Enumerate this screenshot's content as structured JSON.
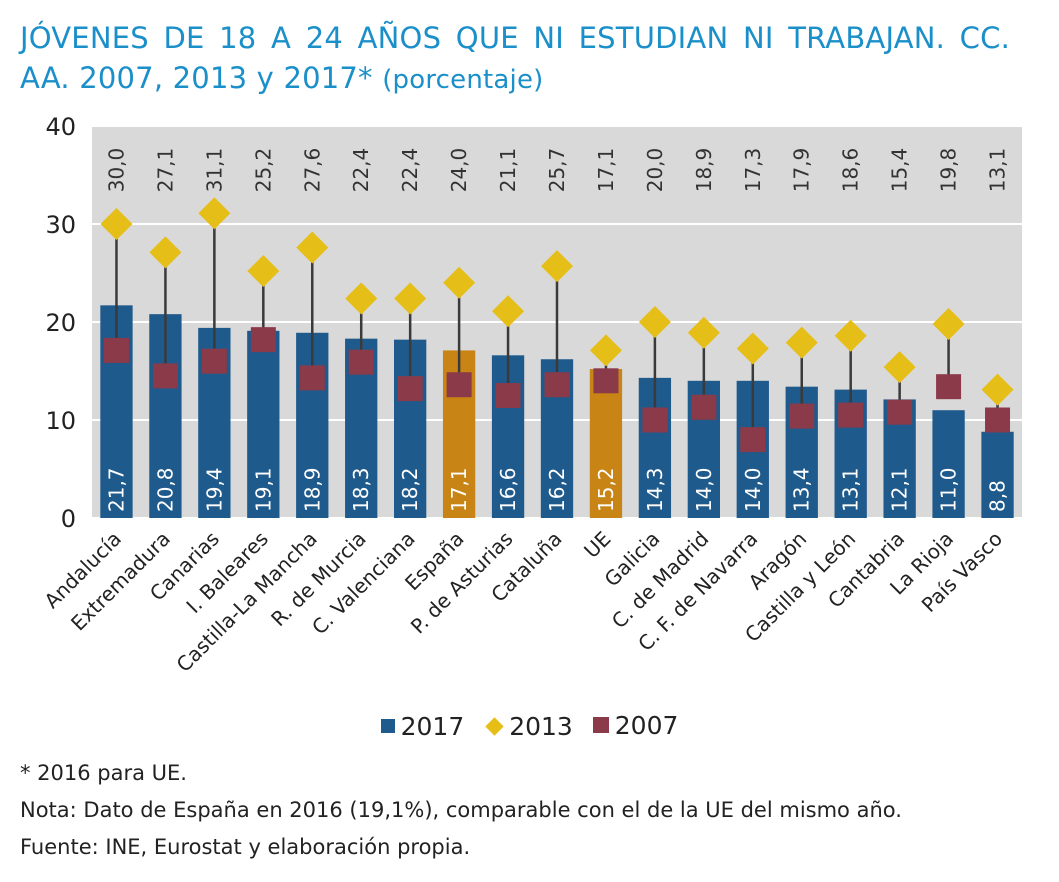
{
  "title": {
    "main": "JÓVENES DE 18 A 24 AÑOS QUE NI ESTUDIAN NI TRABAJAN. CC. AA. 2007, 2013 y 2017*",
    "unit": "(porcentaje)"
  },
  "legend": {
    "s2017": "2017",
    "s2013": "2013",
    "s2007": "2007"
  },
  "notes": {
    "asterisk": "* 2016 para UE.",
    "nota": "Nota: Dato de España en 2016 (19,1%), comparable con el de la UE del mismo año.",
    "fuente": "Fuente: INE, Eurostat  y elaboración propia."
  },
  "colors": {
    "bar": "#1f5a8c",
    "bar_highlight": "#c88414",
    "diamond_2013": "#e6be18",
    "square_2007": "#8b3a4a",
    "plot_background": "#d9d9d9",
    "title": "#1a8fc9"
  },
  "chart_data": {
    "type": "bar",
    "title": "JÓVENES DE 18 A 24 AÑOS QUE NI ESTUDIAN NI TRABAJAN. CC. AA. 2007, 2013 y 2017*",
    "xlabel": "",
    "ylabel": "",
    "ylim": [
      0,
      40
    ],
    "yticks": [
      "0",
      "10",
      "20",
      "30",
      "40"
    ],
    "grid": true,
    "legend_position": "bottom",
    "categories": [
      "Andalucía",
      "Extremadura",
      "Canarias",
      "I. Baleares",
      "Castilla-La Mancha",
      "R. de Murcia",
      "C. Valenciana",
      "España",
      "P. de Asturias",
      "Cataluña",
      "UE",
      "Galicia",
      "C. de Madrid",
      "C. F. de Navarra",
      "Aragón",
      "Castilla y León",
      "Cantabria",
      "La Rioja",
      "País Vasco"
    ],
    "highlight_categories": [
      "España",
      "UE"
    ],
    "series": [
      {
        "name": "2017",
        "kind": "bar",
        "values": [
          21.7,
          20.8,
          19.4,
          19.1,
          18.9,
          18.3,
          18.2,
          17.1,
          16.6,
          16.2,
          15.2,
          14.3,
          14.0,
          14.0,
          13.4,
          13.1,
          12.1,
          11.0,
          8.8
        ],
        "labels": [
          "21,7",
          "20,8",
          "19,4",
          "19,1",
          "18,9",
          "18,3",
          "18,2",
          "17,1",
          "16,6",
          "16,2",
          "15,2",
          "14,3",
          "14,0",
          "14,0",
          "13,4",
          "13,1",
          "12,1",
          "11,0",
          "8,8"
        ]
      },
      {
        "name": "2013",
        "kind": "diamond",
        "values": [
          30.0,
          27.1,
          31.1,
          25.2,
          27.6,
          22.4,
          22.4,
          24.0,
          21.1,
          25.7,
          17.1,
          20.0,
          18.9,
          17.3,
          17.9,
          18.6,
          15.4,
          19.8,
          13.1
        ],
        "labels": [
          "30,0",
          "27,1",
          "31,1",
          "25,2",
          "27,6",
          "22,4",
          "22,4",
          "24,0",
          "21,1",
          "25,7",
          "17,1",
          "20,0",
          "18,9",
          "17,3",
          "17,9",
          "18,6",
          "15,4",
          "19,8",
          "13,1"
        ]
      },
      {
        "name": "2007",
        "kind": "square",
        "values": [
          17.1,
          14.5,
          16.0,
          18.2,
          14.3,
          15.9,
          13.2,
          13.6,
          12.5,
          13.6,
          14.0,
          10.0,
          11.3,
          8.0,
          10.4,
          10.5,
          10.8,
          13.4,
          10.0
        ]
      }
    ]
  }
}
